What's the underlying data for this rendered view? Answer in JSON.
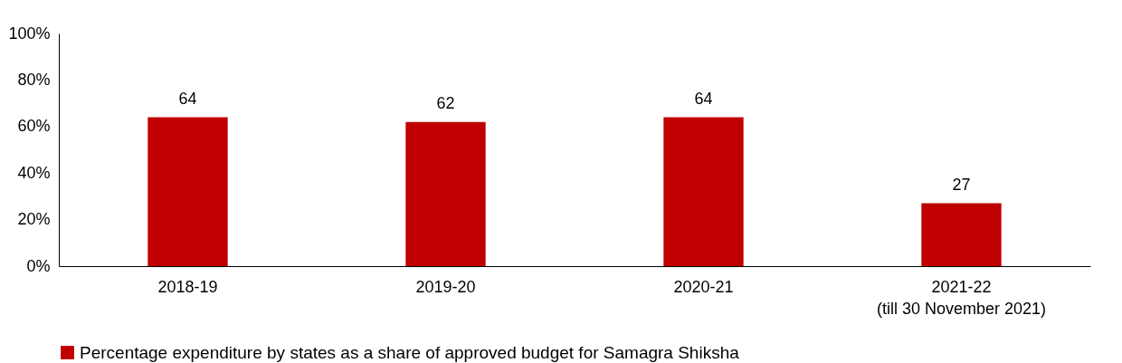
{
  "chart_data": {
    "type": "bar",
    "categories": [
      "2018-19",
      "2019-20",
      "2020-21",
      "2021-22\n(till 30 November 2021)"
    ],
    "series": [
      {
        "name": "Percentage expenditure by states as a share of approved budget for Samagra Shiksha",
        "color": "#c00000",
        "values": [
          64,
          62,
          64,
          27
        ]
      }
    ],
    "ylim": [
      0,
      100
    ],
    "yticks": [
      {
        "value": 0,
        "label": "0%"
      },
      {
        "value": 20,
        "label": "20%"
      },
      {
        "value": 40,
        "label": "40%"
      },
      {
        "value": 60,
        "label": "60%"
      },
      {
        "value": 80,
        "label": "80%"
      },
      {
        "value": 100,
        "label": "100%"
      }
    ],
    "data_labels": true,
    "grid": false,
    "legend": "bottom"
  }
}
